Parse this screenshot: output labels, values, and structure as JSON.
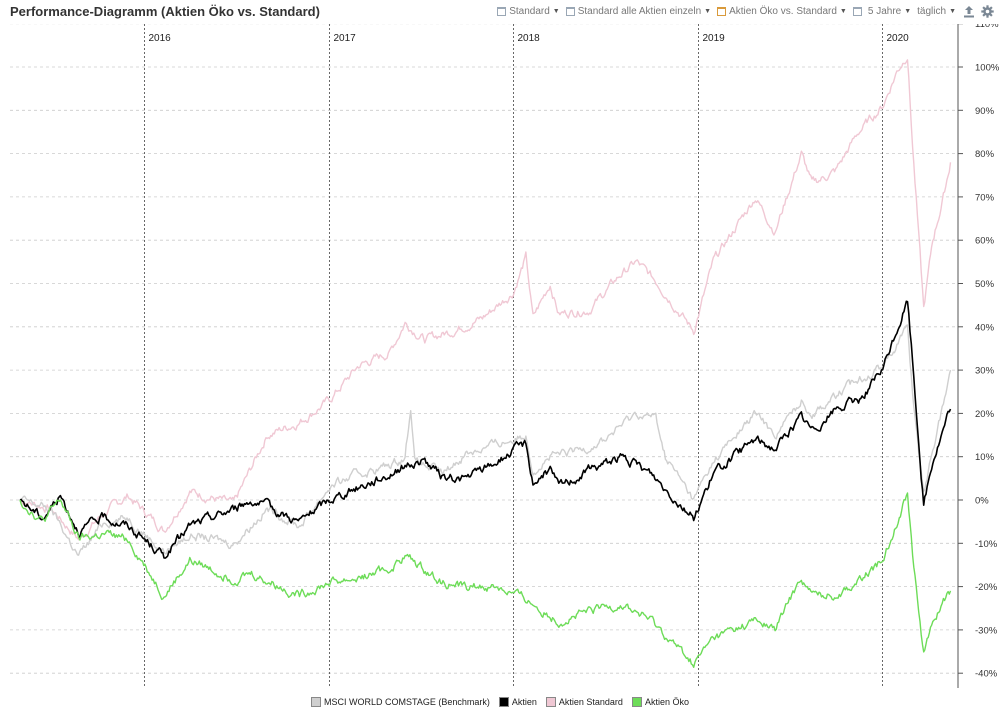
{
  "title": "Performance-Diagramm (Aktien Öko vs. Standard)",
  "toolbar": {
    "standard_label": "Standard",
    "standard_all_label": "Standard alle Aktien einzeln",
    "compare_label": "Aktien Öko vs. Standard",
    "period_label": "5 Jahre",
    "interval_label": "täglich"
  },
  "colors": {
    "benchmark": "#cfcfcf",
    "aktien": "#000000",
    "standard": "#f0c8d4",
    "oeko": "#6ddc58",
    "grid": "#cccccc",
    "year_line": "#444444"
  },
  "chart_data": {
    "type": "line",
    "title": "Performance-Diagramm (Aktien Öko vs. Standard)",
    "xlabel": "",
    "ylabel": "",
    "xlim": [
      "2015-05-01",
      "2020-05-20"
    ],
    "ylim": [
      -40,
      110
    ],
    "y_ticks": [
      -40,
      -30,
      -20,
      -10,
      0,
      10,
      20,
      30,
      40,
      50,
      60,
      70,
      80,
      90,
      100,
      110
    ],
    "y_tick_labels": [
      "-40%",
      "-30%",
      "-20%",
      "-10%",
      "0%",
      "10%",
      "20%",
      "30%",
      "40%",
      "50%",
      "60%",
      "70%",
      "80%",
      "90%",
      "100%",
      "110%"
    ],
    "year_markers": [
      {
        "date": "2016-01-01",
        "label": "2016"
      },
      {
        "date": "2017-01-01",
        "label": "2017"
      },
      {
        "date": "2018-01-01",
        "label": "2018"
      },
      {
        "date": "2019-01-01",
        "label": "2019"
      },
      {
        "date": "2020-01-01",
        "label": "2020"
      }
    ],
    "grid": true,
    "legend_position": "bottom",
    "series": [
      {
        "name": "Aktien Standard",
        "color": "#f0c8d4",
        "points": [
          [
            "2015-05-01",
            0
          ],
          [
            "2015-07-01",
            -2
          ],
          [
            "2015-08-25",
            -9
          ],
          [
            "2015-10-15",
            -3
          ],
          [
            "2015-12-01",
            1
          ],
          [
            "2016-02-10",
            -7
          ],
          [
            "2016-04-01",
            2
          ],
          [
            "2016-06-27",
            -1
          ],
          [
            "2016-09-01",
            15
          ],
          [
            "2016-11-04",
            18
          ],
          [
            "2017-01-02",
            23
          ],
          [
            "2017-03-01",
            31
          ],
          [
            "2017-05-01",
            34
          ],
          [
            "2017-06-01",
            41
          ],
          [
            "2017-07-10",
            37
          ],
          [
            "2017-09-01",
            39
          ],
          [
            "2017-11-01",
            42
          ],
          [
            "2018-01-01",
            48
          ],
          [
            "2018-01-26",
            56
          ],
          [
            "2018-02-09",
            42
          ],
          [
            "2018-03-15",
            50
          ],
          [
            "2018-04-01",
            43
          ],
          [
            "2018-06-01",
            44
          ],
          [
            "2018-08-01",
            52
          ],
          [
            "2018-09-01",
            55
          ],
          [
            "2018-10-15",
            50
          ],
          [
            "2018-12-24",
            39
          ],
          [
            "2019-02-01",
            55
          ],
          [
            "2019-04-25",
            70
          ],
          [
            "2019-06-03",
            62
          ],
          [
            "2019-07-25",
            80
          ],
          [
            "2019-08-15",
            73
          ],
          [
            "2019-10-01",
            76
          ],
          [
            "2019-11-15",
            85
          ],
          [
            "2020-01-02",
            91
          ],
          [
            "2020-01-30",
            99
          ],
          [
            "2020-02-20",
            103
          ],
          [
            "2020-03-01",
            82
          ],
          [
            "2020-03-23",
            44
          ],
          [
            "2020-04-10",
            60
          ],
          [
            "2020-05-01",
            70
          ],
          [
            "2020-05-15",
            78
          ]
        ]
      },
      {
        "name": "MSCI WORLD COMSTAGE (Benchmark)",
        "color": "#cfcfcf",
        "points": [
          [
            "2015-05-01",
            0
          ],
          [
            "2015-07-01",
            -2
          ],
          [
            "2015-08-25",
            -13
          ],
          [
            "2015-10-15",
            -5
          ],
          [
            "2015-12-01",
            -4
          ],
          [
            "2016-02-10",
            -12
          ],
          [
            "2016-04-01",
            -8
          ],
          [
            "2016-06-27",
            -10
          ],
          [
            "2016-09-01",
            -2
          ],
          [
            "2016-11-04",
            -6
          ],
          [
            "2017-01-02",
            3
          ],
          [
            "2017-03-01",
            6
          ],
          [
            "2017-05-01",
            8
          ],
          [
            "2017-06-01",
            10
          ],
          [
            "2017-06-12",
            22
          ],
          [
            "2017-06-20",
            9
          ],
          [
            "2017-08-15",
            6
          ],
          [
            "2017-10-01",
            11
          ],
          [
            "2017-12-01",
            13
          ],
          [
            "2018-01-26",
            15
          ],
          [
            "2018-02-09",
            7
          ],
          [
            "2018-03-15",
            10
          ],
          [
            "2018-05-01",
            11
          ],
          [
            "2018-07-01",
            14
          ],
          [
            "2018-09-01",
            20
          ],
          [
            "2018-10-10",
            19
          ],
          [
            "2018-10-29",
            10
          ],
          [
            "2018-12-24",
            0
          ],
          [
            "2019-02-01",
            9
          ],
          [
            "2019-04-25",
            20
          ],
          [
            "2019-06-03",
            15
          ],
          [
            "2019-07-25",
            23
          ],
          [
            "2019-08-15",
            20
          ],
          [
            "2019-10-01",
            24
          ],
          [
            "2019-11-15",
            28
          ],
          [
            "2020-01-02",
            31
          ],
          [
            "2020-02-20",
            40
          ],
          [
            "2020-03-01",
            25
          ],
          [
            "2020-03-23",
            1
          ],
          [
            "2020-04-10",
            12
          ],
          [
            "2020-05-01",
            22
          ],
          [
            "2020-05-15",
            30
          ]
        ]
      },
      {
        "name": "Aktien",
        "color": "#000000",
        "points": [
          [
            "2015-05-01",
            0
          ],
          [
            "2015-06-15",
            -4
          ],
          [
            "2015-07-20",
            1
          ],
          [
            "2015-08-25",
            -7
          ],
          [
            "2015-10-15",
            -4
          ],
          [
            "2015-12-01",
            -6
          ],
          [
            "2016-02-10",
            -13
          ],
          [
            "2016-04-01",
            -6
          ],
          [
            "2016-06-27",
            -2
          ],
          [
            "2016-08-01",
            0
          ],
          [
            "2016-11-04",
            -5
          ],
          [
            "2017-01-02",
            0
          ],
          [
            "2017-03-01",
            3
          ],
          [
            "2017-05-01",
            6
          ],
          [
            "2017-06-01",
            8
          ],
          [
            "2017-07-10",
            9
          ],
          [
            "2017-08-15",
            5
          ],
          [
            "2017-10-01",
            5
          ],
          [
            "2017-12-01",
            9
          ],
          [
            "2018-01-26",
            13
          ],
          [
            "2018-02-09",
            4
          ],
          [
            "2018-03-15",
            7
          ],
          [
            "2018-04-01",
            3
          ],
          [
            "2018-06-01",
            7
          ],
          [
            "2018-08-01",
            10
          ],
          [
            "2018-10-01",
            6
          ],
          [
            "2018-12-24",
            -4
          ],
          [
            "2019-02-01",
            6
          ],
          [
            "2019-04-25",
            14
          ],
          [
            "2019-06-03",
            12
          ],
          [
            "2019-07-25",
            19
          ],
          [
            "2019-08-15",
            16
          ],
          [
            "2019-10-01",
            21
          ],
          [
            "2019-11-15",
            23
          ],
          [
            "2020-01-02",
            30
          ],
          [
            "2020-02-20",
            46
          ],
          [
            "2020-03-01",
            32
          ],
          [
            "2020-03-23",
            -1
          ],
          [
            "2020-04-10",
            9
          ],
          [
            "2020-05-01",
            16
          ],
          [
            "2020-05-15",
            21
          ]
        ]
      },
      {
        "name": "Aktien Öko",
        "color": "#6ddc58",
        "points": [
          [
            "2015-05-01",
            0
          ],
          [
            "2015-06-15",
            -5
          ],
          [
            "2015-07-20",
            0
          ],
          [
            "2015-08-25",
            -9
          ],
          [
            "2015-10-15",
            -8
          ],
          [
            "2015-12-01",
            -9
          ],
          [
            "2016-02-10",
            -22
          ],
          [
            "2016-04-01",
            -14
          ],
          [
            "2016-06-27",
            -18
          ],
          [
            "2016-08-01",
            -17
          ],
          [
            "2016-11-04",
            -22
          ],
          [
            "2017-01-02",
            -19
          ],
          [
            "2017-03-01",
            -18
          ],
          [
            "2017-05-01",
            -16
          ],
          [
            "2017-06-01",
            -13
          ],
          [
            "2017-08-15",
            -19
          ],
          [
            "2017-10-01",
            -20
          ],
          [
            "2017-12-01",
            -20
          ],
          [
            "2018-01-26",
            -23
          ],
          [
            "2018-02-09",
            -24
          ],
          [
            "2018-04-01",
            -28
          ],
          [
            "2018-06-01",
            -26
          ],
          [
            "2018-08-01",
            -24
          ],
          [
            "2018-10-01",
            -28
          ],
          [
            "2018-12-24",
            -38
          ],
          [
            "2019-02-01",
            -32
          ],
          [
            "2019-04-25",
            -28
          ],
          [
            "2019-06-03",
            -30
          ],
          [
            "2019-07-25",
            -18
          ],
          [
            "2019-08-15",
            -22
          ],
          [
            "2019-10-01",
            -22
          ],
          [
            "2019-11-15",
            -19
          ],
          [
            "2020-01-02",
            -14
          ],
          [
            "2020-02-20",
            2
          ],
          [
            "2020-03-01",
            -12
          ],
          [
            "2020-03-23",
            -35
          ],
          [
            "2020-04-10",
            -29
          ],
          [
            "2020-05-01",
            -23
          ],
          [
            "2020-05-15",
            -21
          ]
        ]
      }
    ]
  },
  "legend": [
    {
      "label": "MSCI WORLD COMSTAGE (Benchmark)",
      "color": "#cfcfcf"
    },
    {
      "label": "Aktien",
      "color": "#000000"
    },
    {
      "label": "Aktien Standard",
      "color": "#f0c8d4"
    },
    {
      "label": "Aktien Öko",
      "color": "#6ddc58"
    }
  ]
}
